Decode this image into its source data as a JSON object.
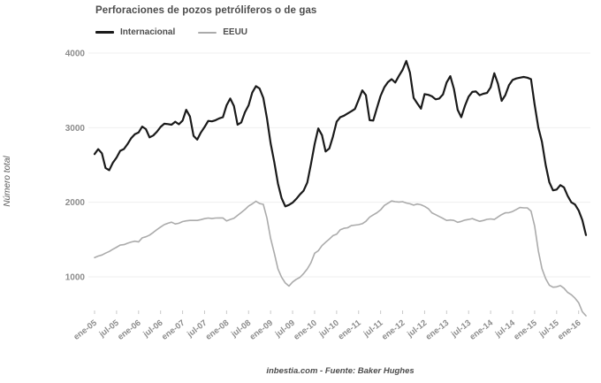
{
  "title": "Perforaciones de pozos petróliferos o de gas",
  "legend": [
    {
      "label": "Internacional",
      "color": "#1a1a1a"
    },
    {
      "label": "EEUU",
      "color": "#ababab"
    }
  ],
  "y_axis": {
    "label": "Número total",
    "ticks": [
      1000,
      2000,
      3000,
      4000
    ]
  },
  "x_axis": {
    "tick_labels": [
      "ene-05",
      "jul-05",
      "ene-06",
      "jul-06",
      "ene-07",
      "jul-07",
      "ene-08",
      "jul-08",
      "ene-09",
      "jul-09",
      "ene-10",
      "jul-10",
      "ene-11",
      "jul-11",
      "ene-12",
      "jul-12",
      "ene-13",
      "jul-13",
      "ene-14",
      "jul-14",
      "ene-15",
      "jul-15",
      "ene-16"
    ]
  },
  "footer": "inbestia.com - Fuente: Baker Hughes",
  "colors": {
    "grid": "#efefef",
    "tick_mark": "#c9c9c9",
    "tick_text": "#8c8c8c",
    "title_text": "#4d4d4d"
  },
  "chart_data": {
    "type": "line",
    "title": "Perforaciones de pozos petróliferos o de gas",
    "xlabel": "",
    "ylabel": "Número total",
    "x_unit": "month",
    "x_start": "ene-05",
    "x_end": "mar-16",
    "ylim": [
      400,
      4100
    ],
    "grid": "horizontal-only",
    "legend_position": "top-left",
    "series": [
      {
        "name": "Internacional",
        "color": "#1a1a1a",
        "stroke_width": 2.2,
        "values": [
          2646,
          2712,
          2656,
          2460,
          2430,
          2530,
          2600,
          2690,
          2713,
          2780,
          2860,
          2913,
          2935,
          3014,
          2980,
          2870,
          2895,
          2945,
          3010,
          3052,
          3048,
          3040,
          3080,
          3045,
          3095,
          3240,
          3150,
          2890,
          2840,
          2935,
          3010,
          3090,
          3085,
          3100,
          3125,
          3140,
          3300,
          3390,
          3290,
          3040,
          3070,
          3205,
          3300,
          3470,
          3557,
          3525,
          3400,
          3130,
          2790,
          2540,
          2250,
          2055,
          1945,
          1964,
          1995,
          2045,
          2105,
          2155,
          2265,
          2510,
          2780,
          2990,
          2900,
          2680,
          2720,
          2880,
          3080,
          3140,
          3160,
          3190,
          3220,
          3250,
          3370,
          3500,
          3435,
          3100,
          3095,
          3265,
          3425,
          3540,
          3610,
          3650,
          3605,
          3695,
          3775,
          3895,
          3740,
          3400,
          3325,
          3255,
          3450,
          3440,
          3420,
          3380,
          3390,
          3445,
          3605,
          3690,
          3520,
          3240,
          3140,
          3295,
          3415,
          3480,
          3485,
          3435,
          3455,
          3465,
          3540,
          3730,
          3590,
          3360,
          3435,
          3570,
          3640,
          3660,
          3670,
          3680,
          3670,
          3650,
          3310,
          3000,
          2810,
          2500,
          2270,
          2160,
          2170,
          2230,
          2200,
          2085,
          2000,
          1970,
          1890,
          1760,
          1560
        ]
      },
      {
        "name": "EEUU",
        "color": "#ababab",
        "stroke_width": 1.6,
        "values": [
          1258,
          1278,
          1293,
          1318,
          1340,
          1370,
          1397,
          1425,
          1432,
          1450,
          1467,
          1478,
          1470,
          1523,
          1537,
          1560,
          1595,
          1633,
          1667,
          1700,
          1719,
          1733,
          1709,
          1719,
          1741,
          1750,
          1756,
          1757,
          1757,
          1767,
          1780,
          1788,
          1781,
          1789,
          1790,
          1790,
          1749,
          1770,
          1786,
          1824,
          1863,
          1902,
          1950,
          1978,
          2014,
          1983,
          1972,
          1790,
          1515,
          1320,
          1105,
          995,
          918,
          876,
          931,
          967,
          994,
          1044,
          1107,
          1189,
          1317,
          1350,
          1419,
          1464,
          1506,
          1552,
          1571,
          1631,
          1651,
          1658,
          1687,
          1694,
          1700,
          1713,
          1745,
          1800,
          1831,
          1860,
          1898,
          1957,
          1987,
          2017,
          2008,
          2003,
          2008,
          1990,
          1979,
          1962,
          1976,
          1966,
          1945,
          1914,
          1859,
          1834,
          1809,
          1784,
          1756,
          1762,
          1756,
          1732,
          1743,
          1761,
          1770,
          1781,
          1761,
          1744,
          1755,
          1771,
          1777,
          1769,
          1803,
          1835,
          1859,
          1861,
          1876,
          1904,
          1930,
          1925,
          1925,
          1882,
          1683,
          1348,
          1110,
          976,
          889,
          861,
          866,
          883,
          848,
          791,
          760,
          714,
          654,
          532,
          478
        ]
      }
    ]
  }
}
